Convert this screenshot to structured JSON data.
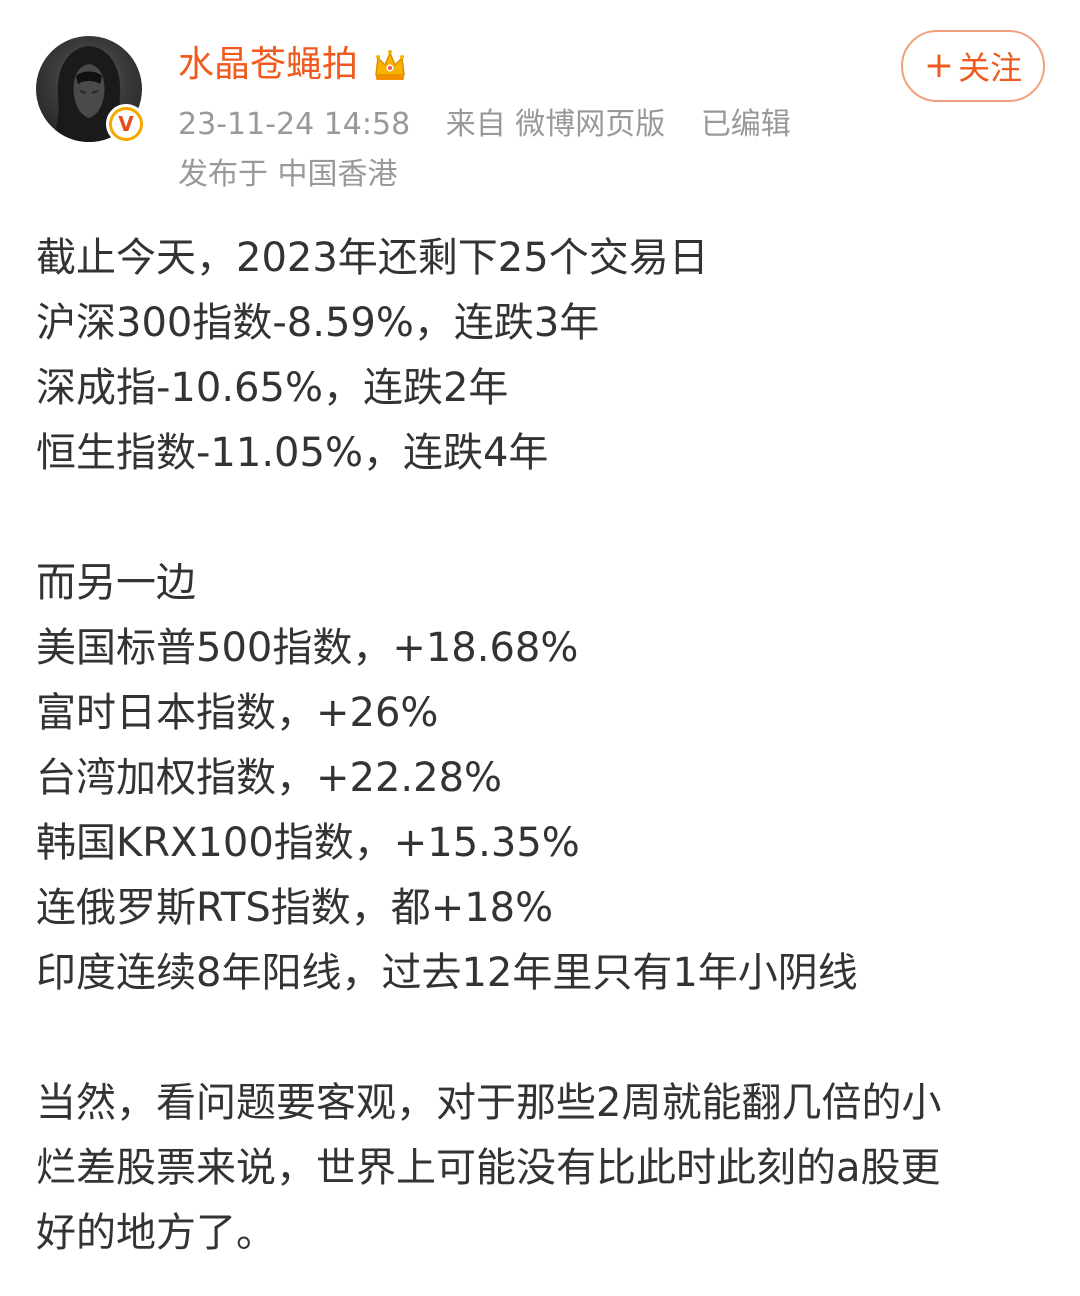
{
  "post": {
    "author": {
      "name": "水晶苍蝇拍",
      "avatar": "avatar-hooded-figure",
      "verified_icon": "verified-v-badge-icon",
      "verified_symbol": "V",
      "member_icon": "crown-icon"
    },
    "follow_button": {
      "icon": "plus-icon",
      "plus": "+",
      "label": "关注"
    },
    "meta": {
      "timestamp": "23-11-24 14:58",
      "source": "来自 微博网页版",
      "edited": "已编辑",
      "location": "发布于 中国香港"
    },
    "paragraph1": [
      "截止今天，2023年还剩下25个交易日",
      "沪深300指数-8.59%，连跌3年",
      "深成指-10.65%，连跌2年",
      "恒生指数-11.05%，连跌4年"
    ],
    "paragraph2": [
      "而另一边",
      "美国标普500指数，+18.68%",
      "富时日本指数，+26%",
      "台湾加权指数，+22.28%",
      "韩国KRX100指数，+15.35%",
      "连俄罗斯RTS指数，都+18%",
      "印度连续8年阳线，过去12年里只有1年小阴线"
    ],
    "paragraph3": [
      "当然，看问题要客观，对于那些2周就能翻几倍的小",
      "烂差股票来说，世界上可能没有比此时此刻的a股更",
      "好的地方了。"
    ]
  },
  "colors": {
    "username": "#f05a1e",
    "meta": "#999999",
    "body_text": "#333333",
    "follow_border": "#f0a27f",
    "badge": "#f7a800"
  }
}
